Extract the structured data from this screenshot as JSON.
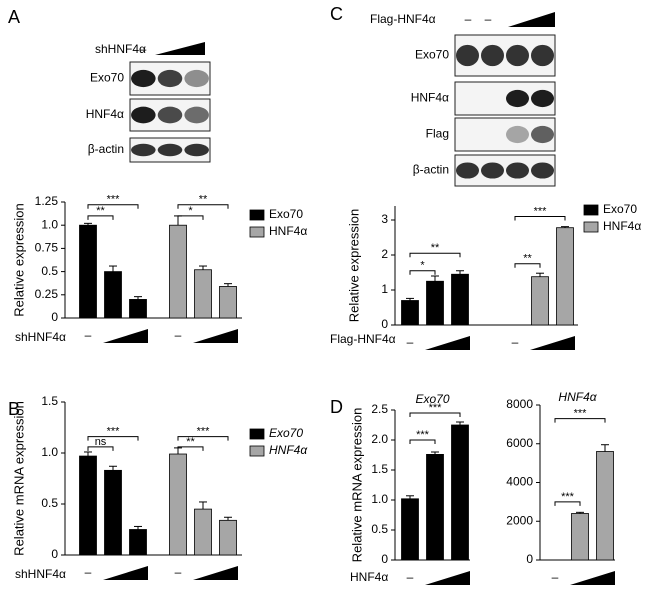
{
  "blots": [
    {
      "panel": "A",
      "treatment": "shHNF4α",
      "lane_labels": [
        "–"
      ],
      "rows": [
        "Exo70",
        "HNF4α",
        "β-actin"
      ]
    },
    {
      "panel": "C",
      "treatment": "Flag-HNF4α",
      "lane_labels": [
        "–",
        "–"
      ],
      "rows": [
        "Exo70",
        "HNF4α",
        "Flag",
        "β-actin"
      ]
    }
  ],
  "chart_data": [
    {
      "type": "bar",
      "ylabel": "Relative expression",
      "xlabel": "shHNF4α",
      "categories": [
        "–",
        null,
        null
      ],
      "series": [
        {
          "name": "Exo70",
          "color": "#000000",
          "values": [
            1.0,
            0.5,
            0.2
          ],
          "errors": [
            0.02,
            0.06,
            0.03
          ]
        },
        {
          "name": "HNF4α",
          "color": "#a6a6a6",
          "values": [
            1.0,
            0.52,
            0.34
          ],
          "errors": [
            0.1,
            0.04,
            0.03
          ]
        }
      ],
      "ylim": [
        0,
        1.25
      ],
      "yticks": [
        0,
        0.25,
        0.5,
        0.75,
        {
          "value": 1,
          "label": "1.0"
        },
        1.25
      ],
      "annotations": [
        "***",
        "**",
        "**",
        "*"
      ],
      "legend": true,
      "legend_italic": false
    },
    {
      "type": "bar",
      "panel": "B",
      "ylabel": "Relative mRNA expression",
      "xlabel": "shHNF4α",
      "categories": [
        "–",
        null,
        null
      ],
      "series": [
        {
          "name": "Exo70",
          "color": "#000000",
          "values": [
            0.97,
            0.83,
            0.25
          ],
          "errors": [
            0.04,
            0.04,
            0.03
          ]
        },
        {
          "name": "HNF4α",
          "color": "#a6a6a6",
          "values": [
            0.99,
            0.45,
            0.34
          ],
          "errors": [
            0.06,
            0.07,
            0.03
          ]
        }
      ],
      "ylim": [
        0,
        1.5
      ],
      "yticks": [
        0,
        0.5,
        {
          "value": 1,
          "label": "1.0"
        },
        1.5
      ],
      "annotations": [
        "***",
        "ns",
        "***",
        "**"
      ],
      "legend": true,
      "legend_italic": true
    },
    {
      "type": "bar",
      "ylabel": "Relative expression",
      "xlabel": "Flag-HNF4α",
      "categories": [
        "–",
        null,
        null
      ],
      "series": [
        {
          "name": "Exo70",
          "color": "#000000",
          "values": [
            0.7,
            1.25,
            1.45
          ],
          "errors": [
            0.06,
            0.15,
            0.1
          ]
        },
        {
          "name": "HNF4α",
          "color": "#a6a6a6",
          "values": [
            0,
            1.38,
            2.78
          ],
          "errors": [
            0,
            0.1,
            0.03
          ]
        }
      ],
      "ylim": [
        0,
        3.4
      ],
      "yticks": [
        0,
        1,
        2,
        3
      ],
      "annotations": [
        "**",
        "*",
        "***",
        "**"
      ],
      "legend": true,
      "legend_italic": false
    },
    {
      "type": "bar",
      "panel": "D",
      "title": "Exo70",
      "ylabel": "Relative mRNA expression",
      "xlabel": "HNF4α",
      "categories": [
        "–",
        null,
        null
      ],
      "series": [
        {
          "color": "#000000",
          "values": [
            1.02,
            1.76,
            2.25
          ],
          "errors": [
            0.05,
            0.04,
            0.05
          ]
        }
      ],
      "ylim": [
        0,
        2.5
      ],
      "yticks": [
        0,
        0.5,
        {
          "value": 1,
          "label": "1.0"
        },
        1.5,
        {
          "value": 2,
          "label": "2.0"
        },
        2.5
      ],
      "annotations": [
        "***",
        "***"
      ],
      "legend": false
    },
    {
      "type": "bar",
      "title": "HNF4α",
      "categories": [
        "–",
        null,
        null
      ],
      "series": [
        {
          "color": "#a6a6a6",
          "values": [
            0,
            2400,
            5600
          ],
          "errors": [
            0,
            60,
            350
          ]
        }
      ],
      "ylim": [
        0,
        8000
      ],
      "yticks": [
        0,
        2000,
        4000,
        6000,
        8000
      ],
      "annotations": [
        "***",
        "***"
      ],
      "legend": false
    }
  ]
}
